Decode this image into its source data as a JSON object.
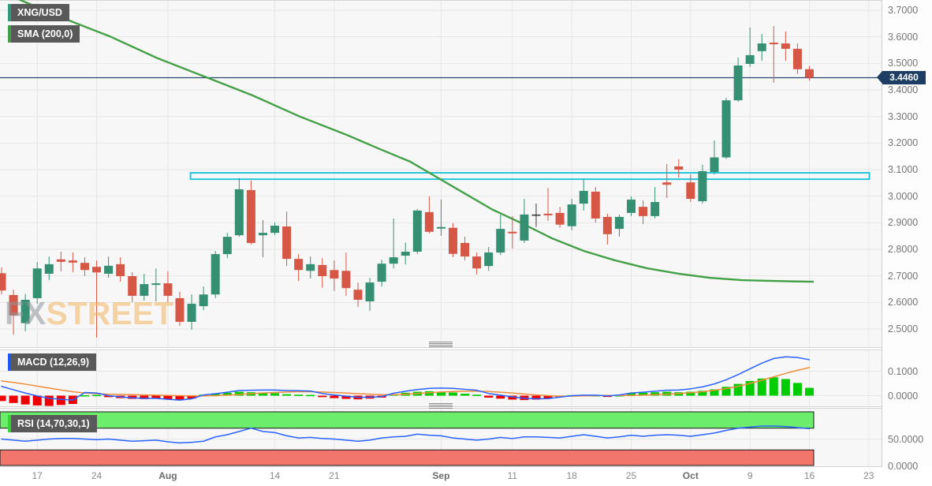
{
  "legend": {
    "instrument": "XNG/USD",
    "sma": "SMA (200,0)",
    "macd": "MACD (12,26,9)",
    "rsi": "RSI (14,70,30,1)"
  },
  "watermark": {
    "part1": "FX",
    "part2": "STREET"
  },
  "price_badge": {
    "value": "3.4460"
  },
  "chart_data": {
    "type": "candlestick",
    "title": "XNG/USD daily candlestick chart with SMA(200), MACD(12,26,9) and RSI(14,70,30,1)",
    "price_axis": {
      "labels": [
        "3.7000",
        "3.6000",
        "3.5000",
        "3.4000",
        "3.3000",
        "3.2000",
        "3.1000",
        "3.0000",
        "2.9000",
        "2.8000",
        "2.7000",
        "2.6000",
        "2.5000"
      ],
      "values": [
        3.7,
        3.6,
        3.5,
        3.4,
        3.3,
        3.2,
        3.1,
        3.0,
        2.9,
        2.8,
        2.7,
        2.6,
        2.5
      ],
      "range": [
        2.5,
        3.7
      ]
    },
    "time_axis": [
      {
        "label": "17",
        "index": 3,
        "bold": false
      },
      {
        "label": "24",
        "index": 8,
        "bold": false
      },
      {
        "label": "Aug",
        "index": 14,
        "bold": true
      },
      {
        "label": "14",
        "index": 23,
        "bold": false
      },
      {
        "label": "21",
        "index": 28,
        "bold": false
      },
      {
        "label": "Sep",
        "index": 37,
        "bold": true
      },
      {
        "label": "11",
        "index": 43,
        "bold": false
      },
      {
        "label": "18",
        "index": 48,
        "bold": false
      },
      {
        "label": "25",
        "index": 53,
        "bold": false
      },
      {
        "label": "Oct",
        "index": 58,
        "bold": true
      },
      {
        "label": "9",
        "index": 63,
        "bold": false
      },
      {
        "label": "16",
        "index": 68,
        "bold": false
      },
      {
        "label": "23",
        "index": 73,
        "bold": false
      }
    ],
    "current_price": 3.446,
    "resistance_box": {
      "price_top": 3.088,
      "price_bottom": 3.064,
      "start_index": 15.9,
      "end_index": 73.05
    },
    "candles_format": [
      "date",
      "open",
      "high",
      "low",
      "close"
    ],
    "candles": [
      [
        "Jul 12",
        2.71,
        2.732,
        2.63,
        2.645
      ],
      [
        "Jul 13",
        2.628,
        2.648,
        2.478,
        2.551
      ],
      [
        "Jul 14",
        2.522,
        2.632,
        2.492,
        2.61
      ],
      [
        "Jul 17",
        2.616,
        2.752,
        2.595,
        2.728
      ],
      [
        "Jul 18",
        2.708,
        2.773,
        2.684,
        2.744
      ],
      [
        "Jul 19",
        2.762,
        2.791,
        2.717,
        2.753
      ],
      [
        "Jul 20",
        2.758,
        2.788,
        2.714,
        2.75
      ],
      [
        "Jul 21",
        2.749,
        2.77,
        2.699,
        2.722
      ],
      [
        "Jul 24",
        2.734,
        2.758,
        2.468,
        2.713
      ],
      [
        "Jul 25",
        2.708,
        2.773,
        2.693,
        2.738
      ],
      [
        "Jul 26",
        2.744,
        2.77,
        2.678,
        2.699
      ],
      [
        "Jul 27",
        2.699,
        2.714,
        2.601,
        2.625
      ],
      [
        "Jul 28",
        2.625,
        2.708,
        2.607,
        2.669
      ],
      [
        "Jul 31",
        2.666,
        2.728,
        2.604,
        2.672
      ],
      [
        "Aug 1",
        2.672,
        2.717,
        2.601,
        2.625
      ],
      [
        "Aug 2",
        2.616,
        2.64,
        2.512,
        2.527
      ],
      [
        "Aug 3",
        2.527,
        2.63,
        2.497,
        2.595
      ],
      [
        "Aug 4",
        2.586,
        2.66,
        2.571,
        2.63
      ],
      [
        "Aug 7",
        2.63,
        2.794,
        2.616,
        2.782
      ],
      [
        "Aug 8",
        2.782,
        2.862,
        2.767,
        2.847
      ],
      [
        "Aug 9",
        2.853,
        3.068,
        2.847,
        3.026
      ],
      [
        "Aug 10",
        3.023,
        3.059,
        2.818,
        2.824
      ],
      [
        "Aug 11",
        2.853,
        2.91,
        2.77,
        2.862
      ],
      [
        "Aug 14",
        2.862,
        2.901,
        2.853,
        2.889
      ],
      [
        "Aug 15",
        2.886,
        2.942,
        2.737,
        2.764
      ],
      [
        "Aug 16",
        2.764,
        2.782,
        2.681,
        2.722
      ],
      [
        "Aug 17",
        2.719,
        2.773,
        2.69,
        2.744
      ],
      [
        "Aug 18",
        2.741,
        2.767,
        2.655,
        2.699
      ],
      [
        "Aug 21",
        2.722,
        2.758,
        2.643,
        2.69
      ],
      [
        "Aug 22",
        2.719,
        2.788,
        2.625,
        2.654
      ],
      [
        "Aug 23",
        2.648,
        2.675,
        2.583,
        2.61
      ],
      [
        "Aug 24",
        2.604,
        2.693,
        2.568,
        2.675
      ],
      [
        "Aug 25",
        2.678,
        2.761,
        2.66,
        2.746
      ],
      [
        "Aug 28",
        2.746,
        2.916,
        2.728,
        2.77
      ],
      [
        "Aug 29",
        2.776,
        2.825,
        2.743,
        2.791
      ],
      [
        "Aug 30",
        2.791,
        2.952,
        2.782,
        2.946
      ],
      [
        "Aug 31",
        2.94,
        2.999,
        2.86,
        2.866
      ],
      [
        "Sep 1",
        2.878,
        2.987,
        2.851,
        2.884
      ],
      [
        "Sep 4",
        2.881,
        2.898,
        2.771,
        2.783
      ],
      [
        "Sep 5",
        2.824,
        2.848,
        2.758,
        2.773
      ],
      [
        "Sep 6",
        2.773,
        2.788,
        2.705,
        2.728
      ],
      [
        "Sep 7",
        2.737,
        2.809,
        2.719,
        2.788
      ],
      [
        "Sep 8",
        2.788,
        2.93,
        2.779,
        2.877
      ],
      [
        "Sep 11",
        2.866,
        2.925,
        2.803,
        2.86
      ],
      [
        "Sep 12",
        2.833,
        2.99,
        2.824,
        2.931
      ],
      [
        "Sep 13",
        2.931,
        2.972,
        2.884,
        2.931
      ],
      [
        "Sep 14",
        2.934,
        3.031,
        2.907,
        2.928
      ],
      [
        "Sep 15",
        2.937,
        2.96,
        2.881,
        2.893
      ],
      [
        "Sep 18",
        2.887,
        2.99,
        2.872,
        2.969
      ],
      [
        "Sep 19",
        2.972,
        3.065,
        2.946,
        3.02
      ],
      [
        "Sep 20",
        3.017,
        3.035,
        2.901,
        2.916
      ],
      [
        "Sep 21",
        2.922,
        2.934,
        2.818,
        2.857
      ],
      [
        "Sep 22",
        2.877,
        2.931,
        2.848,
        2.922
      ],
      [
        "Sep 25",
        2.937,
        2.999,
        2.925,
        2.987
      ],
      [
        "Sep 26",
        2.96,
        2.984,
        2.895,
        2.925
      ],
      [
        "Sep 27",
        2.925,
        3.035,
        2.916,
        2.978
      ],
      [
        "Sep 28",
        3.052,
        3.121,
        2.993,
        3.043
      ],
      [
        "Sep 29",
        3.112,
        3.139,
        3.07,
        3.1
      ],
      [
        "Oct 2",
        3.052,
        3.082,
        2.978,
        2.99
      ],
      [
        "Oct 3",
        2.981,
        3.118,
        2.972,
        3.094
      ],
      [
        "Oct 4",
        3.091,
        3.21,
        3.082,
        3.146
      ],
      [
        "Oct 5",
        3.146,
        3.37,
        3.14,
        3.361
      ],
      [
        "Oct 6",
        3.361,
        3.522,
        3.355,
        3.492
      ],
      [
        "Oct 9",
        3.498,
        3.635,
        3.486,
        3.531
      ],
      [
        "Oct 10",
        3.546,
        3.611,
        3.51,
        3.575
      ],
      [
        "Oct 11",
        3.578,
        3.64,
        3.427,
        3.572
      ],
      [
        "Oct 12",
        3.575,
        3.62,
        3.51,
        3.555
      ],
      [
        "Oct 13",
        3.555,
        3.575,
        3.46,
        3.478
      ],
      [
        "Oct 16",
        3.478,
        3.49,
        3.435,
        3.446
      ]
    ],
    "sma_points": [
      [
        1.5,
        3.74
      ],
      [
        5.2,
        3.67
      ],
      [
        9.2,
        3.6
      ],
      [
        13.1,
        3.52
      ],
      [
        17.1,
        3.45
      ],
      [
        21.1,
        3.38
      ],
      [
        25.1,
        3.3
      ],
      [
        29.1,
        3.23
      ],
      [
        31.7,
        3.18
      ],
      [
        34.4,
        3.13
      ],
      [
        36.7,
        3.07
      ],
      [
        39.0,
        3.01
      ],
      [
        41.3,
        2.95
      ],
      [
        43.7,
        2.9
      ],
      [
        46.3,
        2.842
      ],
      [
        49.0,
        2.794
      ],
      [
        51.6,
        2.759
      ],
      [
        54.3,
        2.729
      ],
      [
        57.0,
        2.708
      ],
      [
        59.6,
        2.693
      ],
      [
        62.3,
        2.684
      ],
      [
        64.9,
        2.681
      ],
      [
        66.9,
        2.679
      ],
      [
        68.3,
        2.678
      ]
    ],
    "macd": {
      "axis_labels": [
        "0.1000",
        "0.0000"
      ],
      "axis_values": [
        0.1,
        0.0
      ],
      "histogram": [
        -0.022,
        -0.03,
        -0.036,
        -0.04,
        -0.042,
        -0.038,
        -0.034,
        0.002,
        0.003,
        -0.006,
        -0.01,
        -0.013,
        -0.014,
        -0.013,
        -0.016,
        -0.018,
        -0.012,
        0.004,
        0.008,
        0.012,
        0.016,
        0.014,
        0.012,
        0.01,
        0.006,
        0.004,
        0.003,
        -0.006,
        -0.01,
        -0.013,
        -0.015,
        -0.012,
        -0.008,
        0.006,
        0.012,
        0.016,
        0.018,
        0.016,
        0.013,
        0.008,
        0.004,
        -0.008,
        -0.012,
        -0.016,
        -0.018,
        -0.016,
        -0.012,
        -0.004,
        0.002,
        0.003,
        0.002,
        -0.002,
        0.002,
        0.01,
        0.012,
        0.014,
        0.016,
        0.014,
        0.016,
        0.02,
        0.026,
        0.036,
        0.048,
        0.06,
        0.07,
        0.075,
        0.068,
        0.052,
        0.032
      ],
      "signal_line": [
        0.06,
        0.054,
        0.047,
        0.039,
        0.031,
        0.023,
        0.016,
        0.011,
        0.008,
        0.006,
        0.005,
        0.004,
        0.003,
        0.002,
        0.001,
        0.0,
        -0.001,
        -0.001,
        0.0,
        0.002,
        0.005,
        0.008,
        0.011,
        0.013,
        0.015,
        0.016,
        0.016,
        0.015,
        0.013,
        0.011,
        0.008,
        0.006,
        0.004,
        0.004,
        0.006,
        0.009,
        0.012,
        0.015,
        0.017,
        0.018,
        0.018,
        0.017,
        0.014,
        0.011,
        0.007,
        0.003,
        0.0,
        -0.002,
        -0.002,
        -0.001,
        0.0,
        0.001,
        0.001,
        0.001,
        0.002,
        0.004,
        0.006,
        0.009,
        0.012,
        0.016,
        0.022,
        0.029,
        0.038,
        0.05,
        0.063,
        0.077,
        0.091,
        0.104,
        0.115
      ]
    },
    "rsi": {
      "axis_labels": [
        "50.0000",
        "0.0000"
      ],
      "axis_values": [
        50,
        0
      ],
      "overbought_level": 70,
      "oversold_level": 30,
      "values": [
        50,
        48,
        46,
        48,
        50,
        51,
        51,
        50,
        49,
        50,
        48,
        46,
        47,
        48,
        45,
        43,
        44,
        46,
        54,
        58,
        64,
        70,
        64,
        62,
        56,
        52,
        53,
        51,
        50,
        48,
        46,
        48,
        52,
        54,
        55,
        59,
        57,
        56,
        52,
        50,
        48,
        50,
        53,
        51,
        54,
        54,
        53,
        52,
        55,
        58,
        55,
        52,
        54,
        57,
        55,
        57,
        58,
        57,
        55,
        58,
        61,
        66,
        70,
        72,
        74,
        74,
        73,
        71,
        69
      ]
    },
    "colors": {
      "candle_up": "#359073",
      "candle_down": "#d65745",
      "candle_neutral": "#3a3a3a",
      "sma_line": "#43a047",
      "resistance_box": "#26c6da",
      "price_line": "#2a4a6e",
      "badge_bg": "#1d3d63",
      "macd_line": "#2962ff",
      "signal_line": "#f08c3a",
      "hist_up": "#00cc00",
      "hist_down": "#ee0000",
      "rsi_line": "#2962ff",
      "overbought_band": "#6cee6c",
      "oversold_band": "#f2766c",
      "band_border": "#1a1a1a",
      "grid": "#e6e6e6",
      "chip_bar_instrument": "#2e9b7b",
      "chip_bar_sma": "#43a047",
      "chip_bar_macd": "#2156f3",
      "chip_bar_rsi": "#35d435"
    }
  }
}
